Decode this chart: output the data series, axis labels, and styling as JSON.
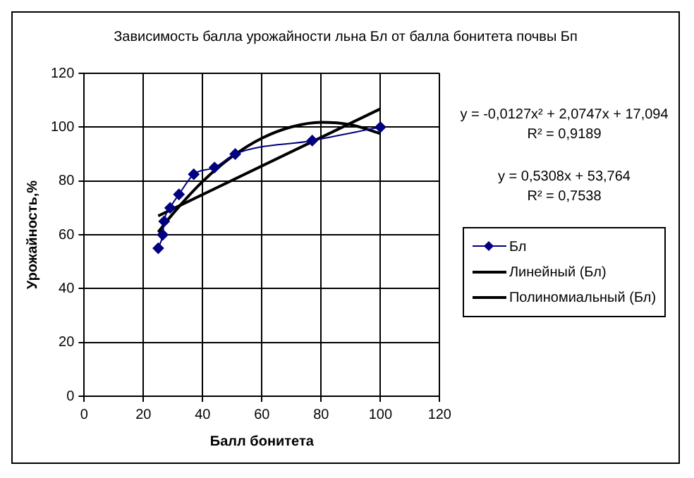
{
  "chart_data": {
    "type": "line",
    "title": "Зависимость балла урожайности льна Бл от балла бонитета почвы Бп",
    "xlabel": "Балл бонитета",
    "ylabel": "Урожайность,%",
    "xlim": [
      0,
      120
    ],
    "xticks": [
      0,
      20,
      40,
      60,
      80,
      100,
      120
    ],
    "ylim": [
      0,
      120
    ],
    "yticks": [
      0,
      20,
      40,
      60,
      80,
      100,
      120
    ],
    "grid": true,
    "legend": "right",
    "series": [
      {
        "name": "Бл",
        "color": "#000080",
        "marker": "diamond",
        "x": [
          25,
          26.5,
          27,
          29,
          32,
          37,
          44,
          51,
          77,
          100
        ],
        "values": [
          55,
          60,
          65,
          70,
          75,
          82.5,
          85,
          90,
          95,
          100
        ]
      },
      {
        "name": "Линейный (Бл)",
        "color": "#000000",
        "marker": "none",
        "x": [
          25,
          100
        ],
        "values": [
          67,
          106.8
        ]
      },
      {
        "name": "Полиномиальный (Бл)",
        "color": "#000000",
        "marker": "none",
        "x": [
          25,
          30,
          40,
          50,
          60,
          70,
          80,
          90,
          100
        ],
        "values": [
          61,
          67.9,
          79.8,
          89.1,
          95.9,
          100.1,
          101.8,
          100.9,
          97.6
        ]
      }
    ],
    "annotations": [
      "y = -0,0127x² + 2,0747x + 17,094",
      "R² = 0,9189",
      "y = 0,5308x + 53,764",
      "R² = 0,7538"
    ]
  }
}
